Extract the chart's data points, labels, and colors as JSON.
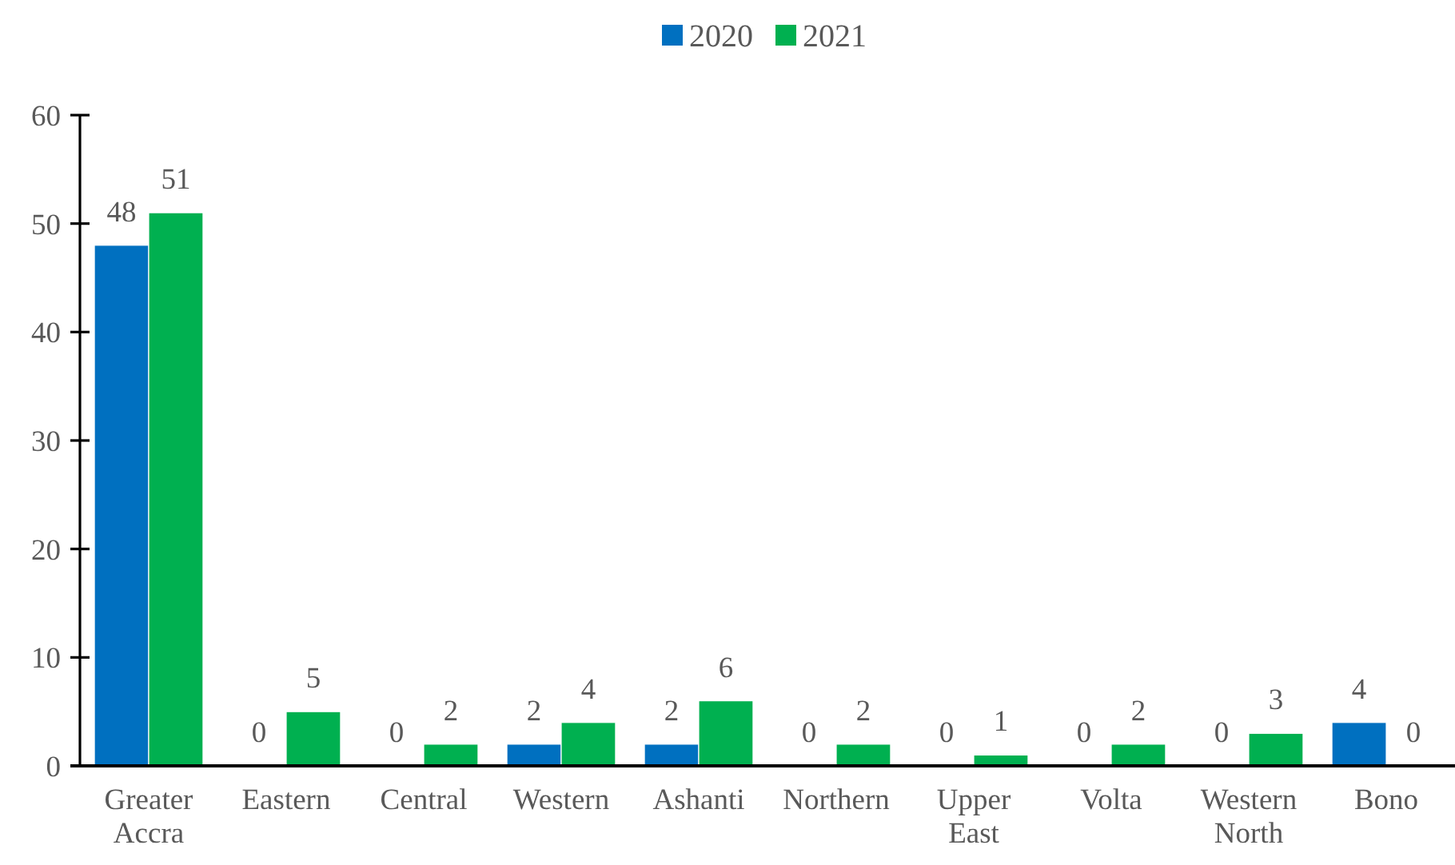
{
  "chart_data": {
    "type": "bar",
    "categories": [
      "Greater Accra",
      "Eastern",
      "Central",
      "Western",
      "Ashanti",
      "Northern",
      "Upper East",
      "Volta",
      "Western North",
      "Bono"
    ],
    "series": [
      {
        "name": "2020",
        "color": "#0070c0",
        "values": [
          48,
          0,
          0,
          2,
          2,
          0,
          0,
          0,
          0,
          4
        ]
      },
      {
        "name": "2021",
        "color": "#00b050",
        "values": [
          51,
          5,
          2,
          4,
          6,
          2,
          1,
          2,
          3,
          0
        ]
      }
    ],
    "ylim": [
      0,
      60
    ],
    "yticks": [
      0,
      10,
      20,
      30,
      40,
      50,
      60
    ],
    "legend": "top",
    "data_labels": true
  }
}
